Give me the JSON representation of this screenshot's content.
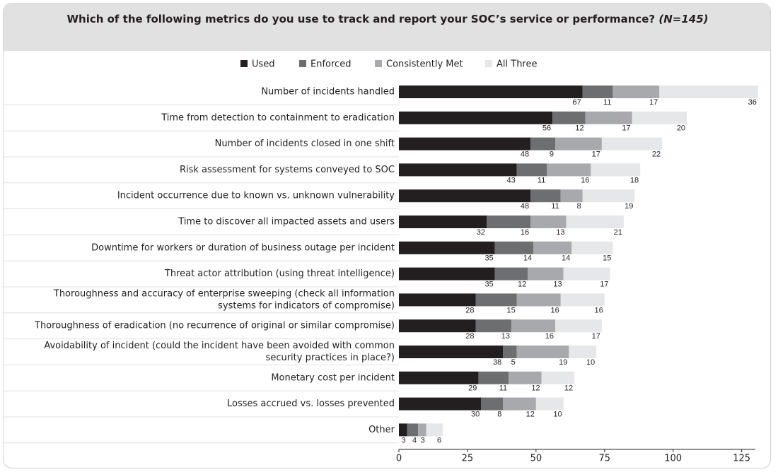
{
  "chart_data": {
    "type": "stacked-barh",
    "title": "Which of the following metrics do you use to track and report your SOC’s service or performance?",
    "title_note": "(N=145)",
    "categories": [
      [
        "Number of incidents handled"
      ],
      [
        "Time from detection to containment to eradication"
      ],
      [
        "Number of incidents closed in one shift"
      ],
      [
        "Risk assessment for systems conveyed to SOC"
      ],
      [
        "Incident occurrence due to known vs. unknown vulnerability"
      ],
      [
        "Time to discover all impacted assets and users"
      ],
      [
        "Downtime for workers or duration of business outage per incident"
      ],
      [
        "Threat actor attribution (using threat intelligence)"
      ],
      [
        "Thoroughness and accuracy of enterprise sweeping (check all information",
        "systems for indicators of compromise)"
      ],
      [
        "Thoroughness of eradication (no recurrence of original or similar compromise)"
      ],
      [
        "Avoidability of incident (could the incident have been avoided with common",
        "security practices in place?)"
      ],
      [
        "Monetary cost per incident"
      ],
      [
        "Losses accrued vs. losses prevented"
      ],
      [
        "Other"
      ]
    ],
    "series": [
      {
        "name": "Used",
        "color": "#231f20",
        "values": [
          67,
          56,
          48,
          43,
          48,
          32,
          35,
          35,
          28,
          28,
          38,
          29,
          30,
          3
        ]
      },
      {
        "name": "Enforced",
        "color": "#6d6e70",
        "values": [
          11,
          12,
          9,
          11,
          11,
          16,
          14,
          12,
          15,
          13,
          5,
          11,
          8,
          4
        ]
      },
      {
        "name": "Consistently Met",
        "color": "#a7a9ac",
        "values": [
          17,
          17,
          17,
          16,
          8,
          13,
          14,
          13,
          16,
          16,
          19,
          12,
          12,
          3
        ]
      },
      {
        "name": "All Three",
        "color": "#e6e7e8",
        "values": [
          36,
          20,
          22,
          18,
          19,
          21,
          15,
          17,
          16,
          17,
          10,
          12,
          10,
          6
        ]
      }
    ],
    "xlim": [
      0,
      130
    ],
    "xticks": [
      0,
      25,
      50,
      75,
      100,
      125
    ]
  }
}
